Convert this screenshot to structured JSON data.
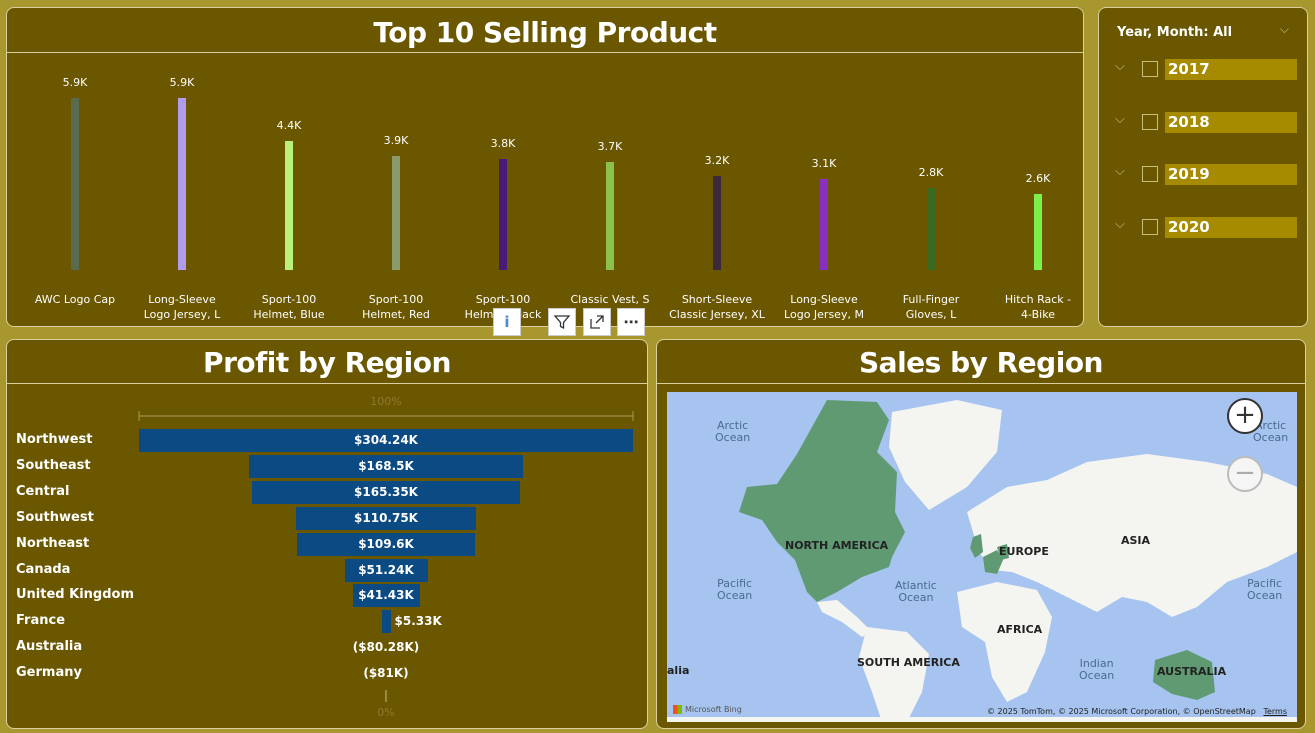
{
  "colors": {
    "background": "#a8962e",
    "panel": "#6b5700",
    "slicer_highlight": "#a68a00",
    "funnel_bar": "#0b4a82"
  },
  "top_products": {
    "title": "Top 10 Selling Product",
    "chart_data": {
      "type": "bar",
      "categories": [
        "AWC Logo Cap",
        "Long-Sleeve Logo Jersey, L",
        "Sport-100 Helmet, Blue",
        "Sport-100 Helmet, Red",
        "Sport-100 Helmet, Black",
        "Classic Vest, S",
        "Short-Sleeve Classic Jersey, XL",
        "Long-Sleeve Logo Jersey, M",
        "Full-Finger Gloves, L",
        "Hitch Rack - 4-Bike"
      ],
      "category_lines": [
        [
          "AWC Logo Cap"
        ],
        [
          "Long-Sleeve",
          "Logo Jersey, L"
        ],
        [
          "Sport-100",
          "Helmet, Blue"
        ],
        [
          "Sport-100",
          "Helmet, Red"
        ],
        [
          "Sport-100",
          "Helmet, Black"
        ],
        [
          "Classic Vest, S"
        ],
        [
          "Short-Sleeve",
          "Classic Jersey, XL"
        ],
        [
          "Long-Sleeve",
          "Logo Jersey, M"
        ],
        [
          "Full-Finger",
          "Gloves, L"
        ],
        [
          "Hitch Rack -",
          "4-Bike"
        ]
      ],
      "values": [
        5900,
        5900,
        4400,
        3900,
        3800,
        3700,
        3200,
        3100,
        2800,
        2600
      ],
      "data_labels": [
        "5.9K",
        "5.9K",
        "4.4K",
        "3.9K",
        "3.8K",
        "3.7K",
        "3.2K",
        "3.1K",
        "2.8K",
        "2.6K"
      ],
      "bar_colors": [
        "#5a6b4f",
        "#b19cf0",
        "#b8f07a",
        "#8a9a6a",
        "#4a1a7a",
        "#8bc34a",
        "#3a2a3a",
        "#8a30c0",
        "#3a6a20",
        "#7ef04a"
      ],
      "ylim": [
        0,
        6500
      ],
      "title": "Top 10 Selling Product"
    }
  },
  "slicer": {
    "header": "Year, Month: All",
    "years": [
      "2017",
      "2018",
      "2019",
      "2020"
    ]
  },
  "toolbar": {
    "info_icon": "i",
    "filter_icon": "filter-icon",
    "focus_icon": "focus-mode-icon",
    "more_icon": "⋯"
  },
  "profit": {
    "title": "Profit by Region",
    "top_axis_label": "100%",
    "bottom_axis_label": "0%",
    "chart_data": {
      "type": "bar",
      "categories": [
        "Northwest",
        "Southeast",
        "Central",
        "Southwest",
        "Northeast",
        "Canada",
        "United Kingdom",
        "France",
        "Australia",
        "Germany"
      ],
      "values": [
        304240,
        168500,
        165350,
        110750,
        109600,
        51240,
        41430,
        5330,
        -80280,
        -81000
      ],
      "data_labels": [
        "$304.24K",
        "$168.5K",
        "$165.35K",
        "$110.75K",
        "$109.6K",
        "$51.24K",
        "$41.43K",
        "$5.33K",
        "($80.28K)",
        "($81K)"
      ],
      "title": "Profit by Region"
    }
  },
  "map": {
    "title": "Sales by Region",
    "continents": [
      "NORTH AMERICA",
      "EUROPE",
      "ASIA",
      "AFRICA",
      "SOUTH AMERICA",
      "AUSTRALIA"
    ],
    "oceans": {
      "arctic_left": "Arctic\nOcean",
      "arctic_right": "Arctic\nOcean",
      "pacific_left": "Pacific\nOcean",
      "atlantic": "Atlantic\nOcean",
      "indian": "Indian\nOcean",
      "pacific_right": "Pacific\nOcean",
      "edge_label": "alia"
    },
    "zoom_in": "+",
    "zoom_out": "−",
    "bing": "Microsoft Bing",
    "attribution": "© 2025 TomTom, © 2025 Microsoft Corporation, © OpenStreetMap",
    "terms": "Terms"
  }
}
